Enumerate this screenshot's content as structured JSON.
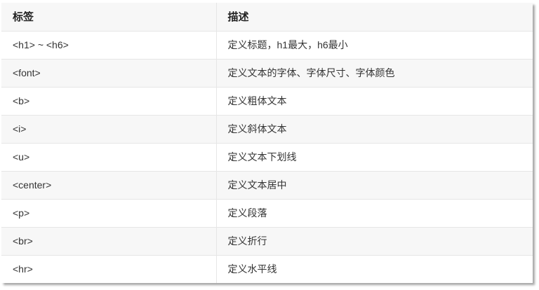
{
  "table": {
    "headers": [
      "标签",
      "描述"
    ],
    "rows": [
      [
        "<h1> ~ <h6>",
        "定义标题，h1最大，h6最小"
      ],
      [
        "<font>",
        "定义文本的字体、字体尺寸、字体颜色"
      ],
      [
        "<b>",
        "定义粗体文本"
      ],
      [
        "<i>",
        "定义斜体文本"
      ],
      [
        "<u>",
        "定义文本下划线"
      ],
      [
        "<center>",
        "定义文本居中"
      ],
      [
        "<p>",
        "定义段落"
      ],
      [
        "<br>",
        "定义折行"
      ],
      [
        "<hr>",
        "定义水平线"
      ]
    ]
  }
}
